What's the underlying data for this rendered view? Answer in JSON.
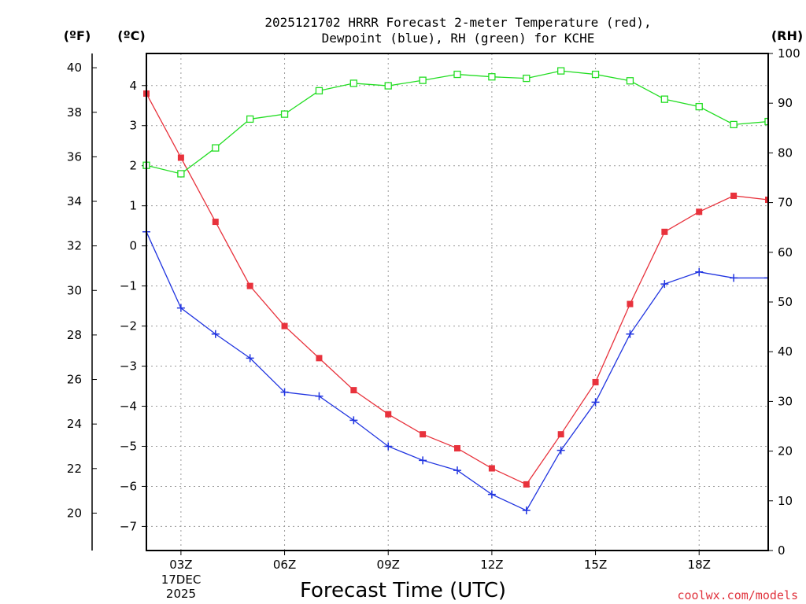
{
  "chart_data": {
    "type": "line",
    "title_line1": "2025121702 HRRR Forecast 2-meter Temperature (red),",
    "title_line2": "Dewpoint (blue), RH (green) for KCHE",
    "xlabel": "Forecast Time (UTC)",
    "credit": "coolwx.com/models",
    "unit_f": "(ºF)",
    "unit_c": "(ºC)",
    "unit_rh": "(RH)",
    "x_hours": [
      2,
      3,
      4,
      5,
      6,
      7,
      8,
      9,
      10,
      11,
      12,
      13,
      14,
      15,
      16,
      17,
      18,
      19,
      20
    ],
    "xlim": [
      2,
      20
    ],
    "x_ticks": [
      {
        "hour": 3,
        "label": "03Z"
      },
      {
        "hour": 6,
        "label": "06Z"
      },
      {
        "hour": 9,
        "label": "09Z"
      },
      {
        "hour": 12,
        "label": "12Z"
      },
      {
        "hour": 15,
        "label": "15Z"
      },
      {
        "hour": 18,
        "label": "18Z"
      }
    ],
    "date_label_line1": "17DEC",
    "date_label_line2": "2025",
    "celsius_axis": {
      "range": [
        -7.6,
        4.8
      ],
      "ticks": [
        -7,
        -6,
        -5,
        -4,
        -3,
        -2,
        -1,
        0,
        1,
        2,
        3,
        4
      ],
      "labels": [
        "−7",
        "−6",
        "−5",
        "−4",
        "−3",
        "−2",
        "−1",
        "0",
        "1",
        "2",
        "3",
        "4"
      ]
    },
    "fahrenheit_axis": {
      "ticks": [
        20,
        22,
        24,
        26,
        28,
        30,
        32,
        34,
        36,
        38,
        40
      ],
      "labels": [
        "20",
        "22",
        "24",
        "26",
        "28",
        "30",
        "32",
        "34",
        "36",
        "38",
        "40"
      ]
    },
    "rh_axis": {
      "range": [
        0,
        100
      ],
      "ticks": [
        0,
        10,
        20,
        30,
        40,
        50,
        60,
        70,
        80,
        90,
        100
      ],
      "labels": [
        "0",
        "10",
        "20",
        "30",
        "40",
        "50",
        "60",
        "70",
        "80",
        "90",
        "100"
      ]
    },
    "series": [
      {
        "name": "Temperature",
        "unit": "C",
        "color": "#e8323c",
        "marker": "filled-square",
        "values": [
          3.8,
          2.2,
          0.6,
          -1.0,
          -2.0,
          -2.8,
          -3.6,
          -4.2,
          -4.7,
          -5.05,
          -5.55,
          -5.95,
          -4.7,
          -3.4,
          -1.45,
          0.35,
          0.85,
          1.25,
          1.15
        ]
      },
      {
        "name": "Dewpoint",
        "unit": "C",
        "color": "#2034e0",
        "marker": "plus",
        "values": [
          0.35,
          -1.55,
          -2.2,
          -2.8,
          -3.65,
          -3.75,
          -4.35,
          -5.0,
          -5.35,
          -5.6,
          -6.2,
          -6.6,
          -5.1,
          -3.9,
          -2.2,
          -0.95,
          -0.65,
          -0.8,
          -0.8
        ]
      },
      {
        "name": "RH",
        "unit": "%",
        "color": "#22dd22",
        "marker": "open-square",
        "values": [
          77.5,
          75.8,
          81.0,
          86.8,
          87.8,
          92.5,
          94.0,
          93.5,
          94.6,
          95.8,
          95.3,
          95.0,
          96.5,
          95.8,
          94.5,
          90.8,
          89.3,
          85.7,
          86.3
        ]
      }
    ],
    "grid": true
  }
}
